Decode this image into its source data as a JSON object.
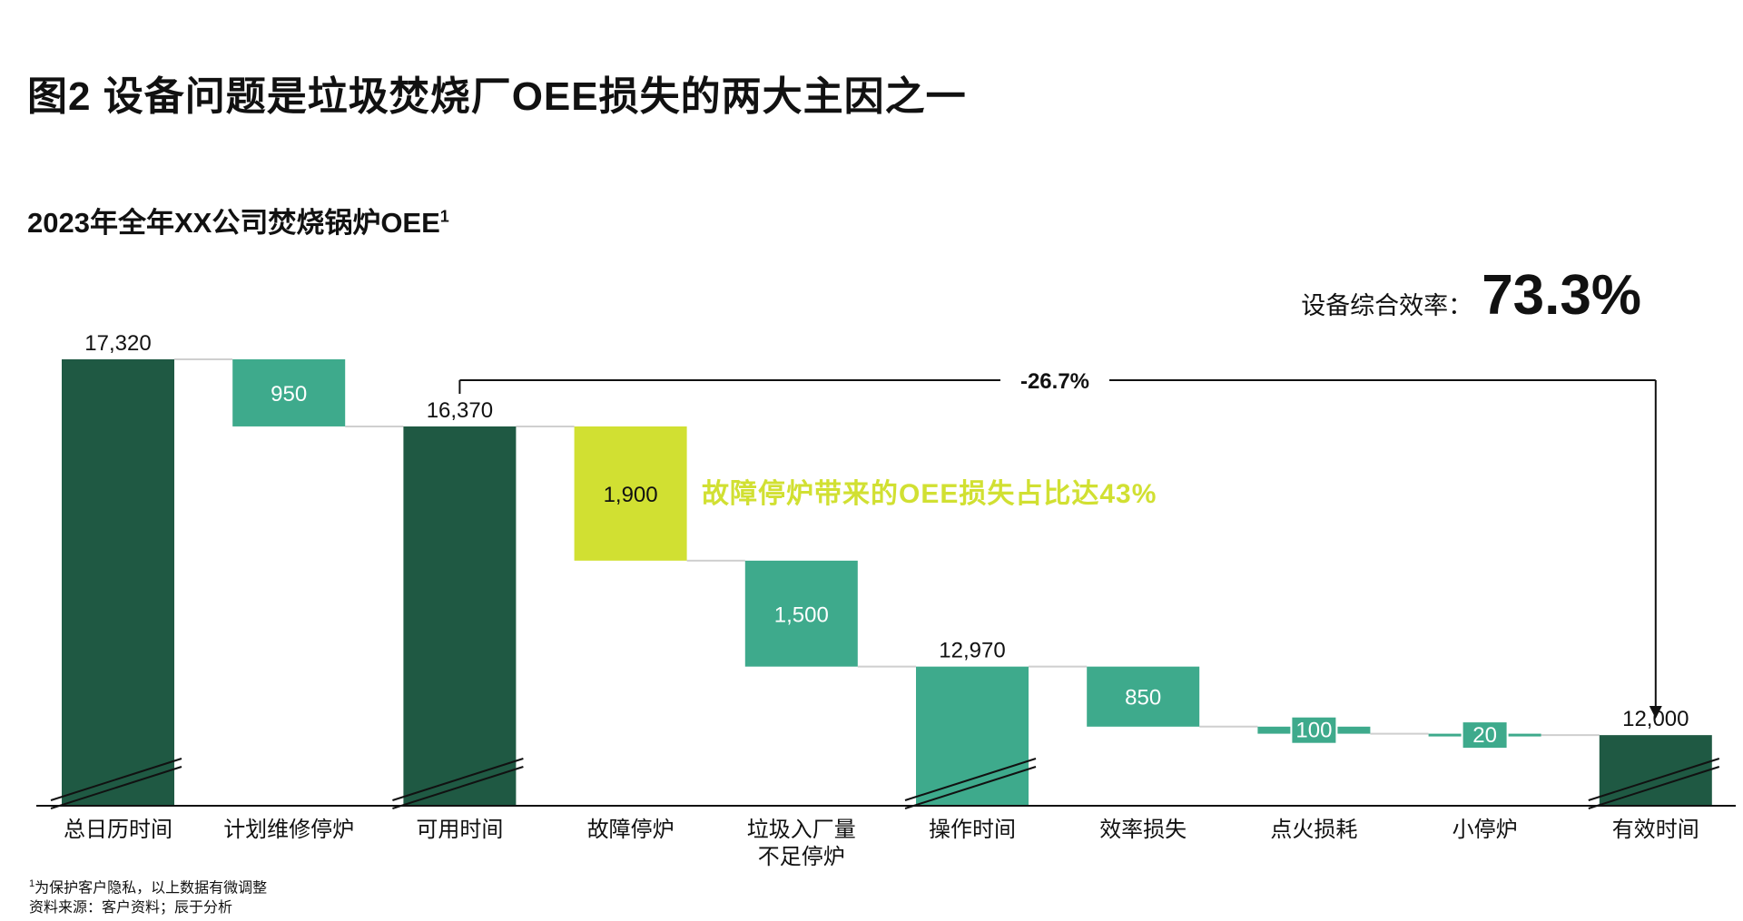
{
  "title": "图2 设备问题是垃圾焚烧厂OEE损失的两大主因之一",
  "subtitle_text": "2023年全年XX公司焚烧锅炉OEE",
  "subtitle_sup": "1",
  "oee": {
    "label": "设备综合效率：",
    "value": "73.3%"
  },
  "footnotes": {
    "note_sup": "1",
    "note_text": "为保护客户隐私，以上数据有微调整",
    "source": "资料来源：客户资料；辰于分析"
  },
  "colors": {
    "dark": "#1f5943",
    "teal": "#3eaa8c",
    "lime": "#d1e032",
    "connector": "#cfcfcf",
    "axis": "#111111"
  },
  "chart_data": {
    "type": "waterfall",
    "title": "2023年全年XX公司焚烧锅炉OEE",
    "ylim": [
      11000,
      17500
    ],
    "axis_break": true,
    "bars": [
      {
        "id": "total-calendar",
        "label_lines": [
          "总日历时间"
        ],
        "kind": "total",
        "value": 17320,
        "display": "17,320",
        "color": "dark"
      },
      {
        "id": "planned-maintenance",
        "label_lines": [
          "计划维修停炉"
        ],
        "kind": "loss",
        "value": 950,
        "display": "950",
        "color": "teal"
      },
      {
        "id": "available-time",
        "label_lines": [
          "可用时间"
        ],
        "kind": "total",
        "value": 16370,
        "display": "16,370",
        "color": "dark"
      },
      {
        "id": "fault-shutdown",
        "label_lines": [
          "故障停炉"
        ],
        "kind": "loss",
        "value": 1900,
        "display": "1,900",
        "color": "lime"
      },
      {
        "id": "waste-insufficient",
        "label_lines": [
          "垃圾入厂量",
          "不足停炉"
        ],
        "kind": "loss",
        "value": 1500,
        "display": "1,500",
        "color": "teal"
      },
      {
        "id": "operating-time",
        "label_lines": [
          "操作时间"
        ],
        "kind": "total",
        "value": 12970,
        "display": "12,970",
        "color": "teal"
      },
      {
        "id": "efficiency-loss",
        "label_lines": [
          "效率损失"
        ],
        "kind": "loss",
        "value": 850,
        "display": "850",
        "color": "teal"
      },
      {
        "id": "ignition-loss",
        "label_lines": [
          "点火损耗"
        ],
        "kind": "loss",
        "value": 100,
        "display": "100",
        "color": "teal"
      },
      {
        "id": "minor-shutdown",
        "label_lines": [
          "小停炉"
        ],
        "kind": "loss",
        "value": 20,
        "display": "20",
        "color": "teal"
      },
      {
        "id": "effective-time",
        "label_lines": [
          "有效时间"
        ],
        "kind": "total",
        "value": 12000,
        "display": "12,000",
        "color": "dark"
      }
    ],
    "annotations": {
      "bracket_label": "-26.7%",
      "bracket_from": "available-time",
      "bracket_to": "effective-time",
      "fault_callout": "故障停炉带来的OEE损失占比达43%"
    }
  }
}
